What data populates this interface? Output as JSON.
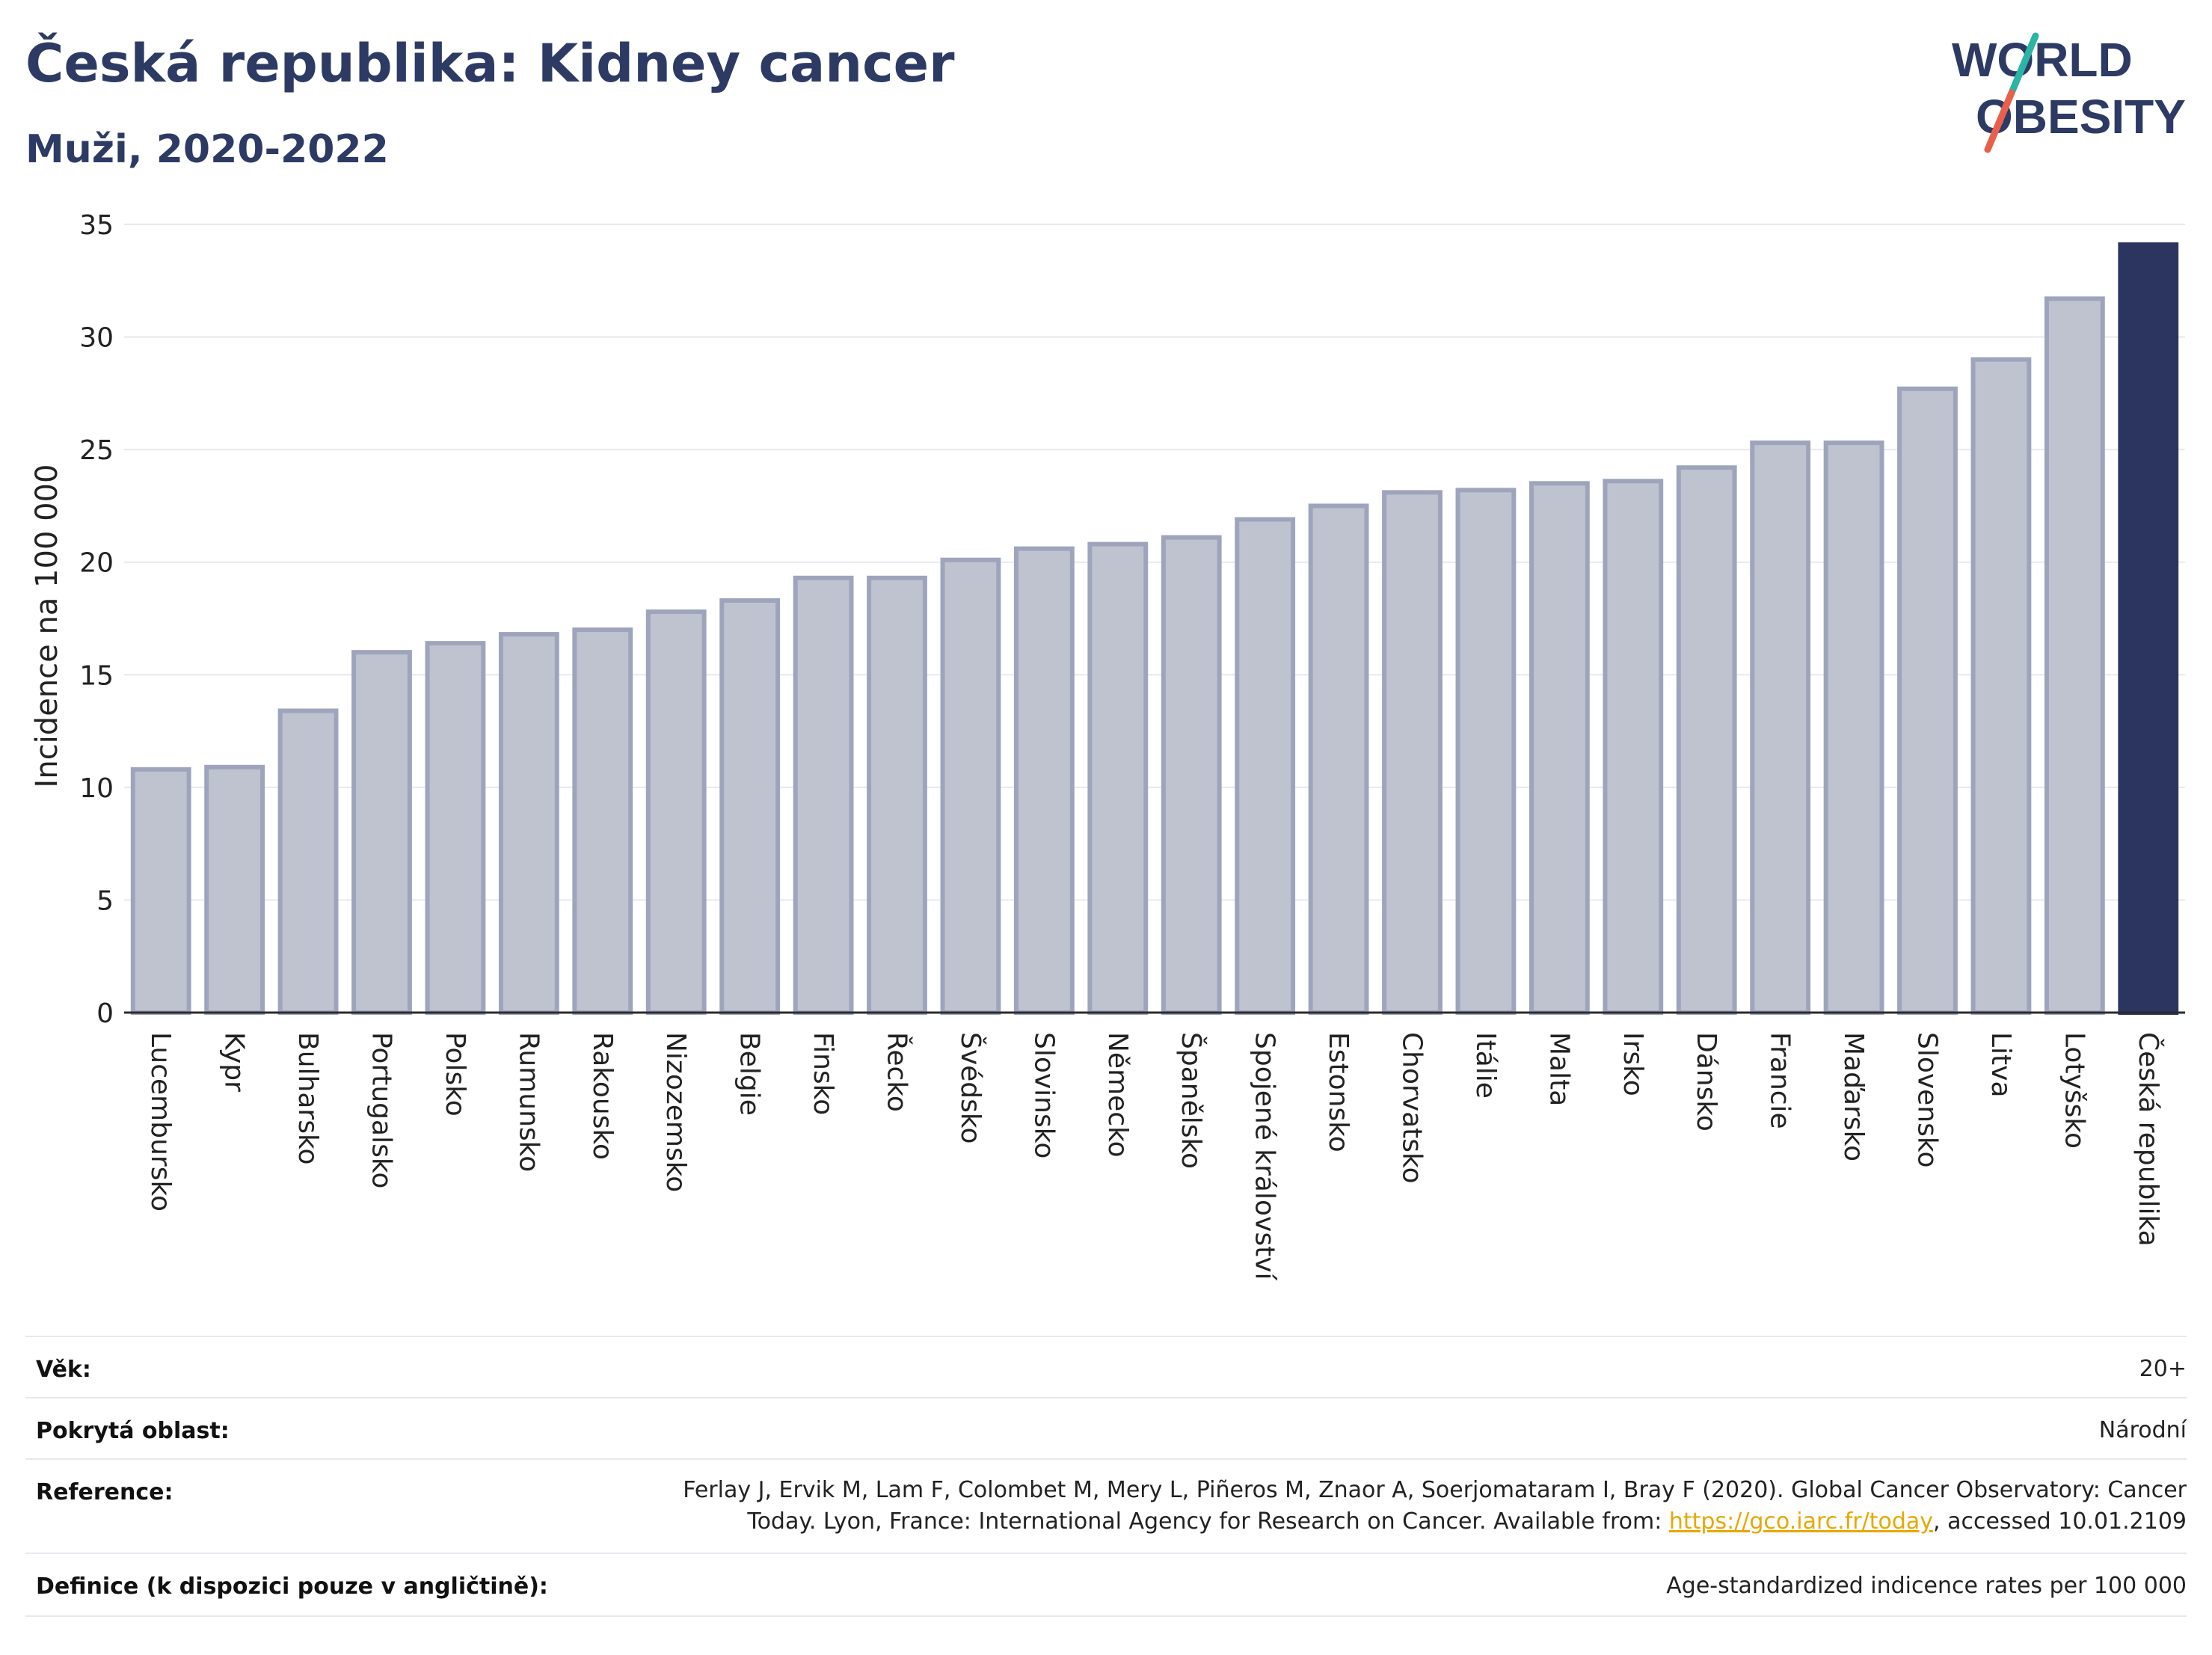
{
  "title": "Česká republika: Kidney cancer",
  "subtitle": "Muži, 2020-2022",
  "logo": {
    "line1": "WORLD",
    "line2": "OBESITY",
    "accent_colors": [
      "#2ab5a5",
      "#e8604c"
    ]
  },
  "chart_data": {
    "type": "bar",
    "ylabel": "Incidence na 100 000",
    "xlabel": "",
    "ylim": [
      0,
      35
    ],
    "yticks": [
      0,
      5,
      10,
      15,
      20,
      25,
      30,
      35
    ],
    "categories": [
      "Lucembursko",
      "Kypr",
      "Bulharsko",
      "Portugalsko",
      "Polsko",
      "Rumunsko",
      "Rakousko",
      "Nizozemsko",
      "Belgie",
      "Finsko",
      "Řecko",
      "Švédsko",
      "Slovinsko",
      "Německo",
      "Španělsko",
      "Spojené království",
      "Estonsko",
      "Chorvatsko",
      "Itálie",
      "Malta",
      "Irsko",
      "Dánsko",
      "Francie",
      "Maďarsko",
      "Slovensko",
      "Litva",
      "Lotyšsko",
      "Česká republika"
    ],
    "values": [
      10.8,
      10.9,
      13.4,
      16.0,
      16.4,
      16.8,
      17.0,
      17.8,
      18.3,
      19.3,
      19.3,
      20.1,
      20.6,
      20.8,
      21.1,
      21.9,
      22.5,
      23.1,
      23.2,
      23.5,
      23.6,
      24.2,
      25.3,
      25.3,
      27.7,
      29.0,
      31.7,
      34.1
    ],
    "highlight": "Česká republika",
    "colors": {
      "bar": "#bfc3d0",
      "bar_border": "#9ea4bc",
      "highlight": "#2b3560",
      "grid": "#e8e9ee",
      "axis": "#2b2b2b"
    },
    "grid": true
  },
  "info": {
    "vek_label": "Věk:",
    "vek_value": "20+",
    "oblast_label": "Pokrytá oblast:",
    "oblast_value": "Národní",
    "reference_label": "Reference:",
    "reference_line1": "Ferlay J, Ervik M, Lam F, Colombet M, Mery L, Piñeros M, Znaor A, Soerjomataram I, Bray F (2020). Global Cancer Observatory: Cancer",
    "reference_line2_pre": "Today. Lyon, France: International Agency for Research on Cancer. Available from: ",
    "reference_link": "https://gco.iarc.fr/today",
    "reference_line2_post": ", accessed 10.01.2109",
    "definice_label": "Definice (k dispozici pouze v angličtině):",
    "definice_value": "Age-standardized indicence rates per 100 000"
  }
}
